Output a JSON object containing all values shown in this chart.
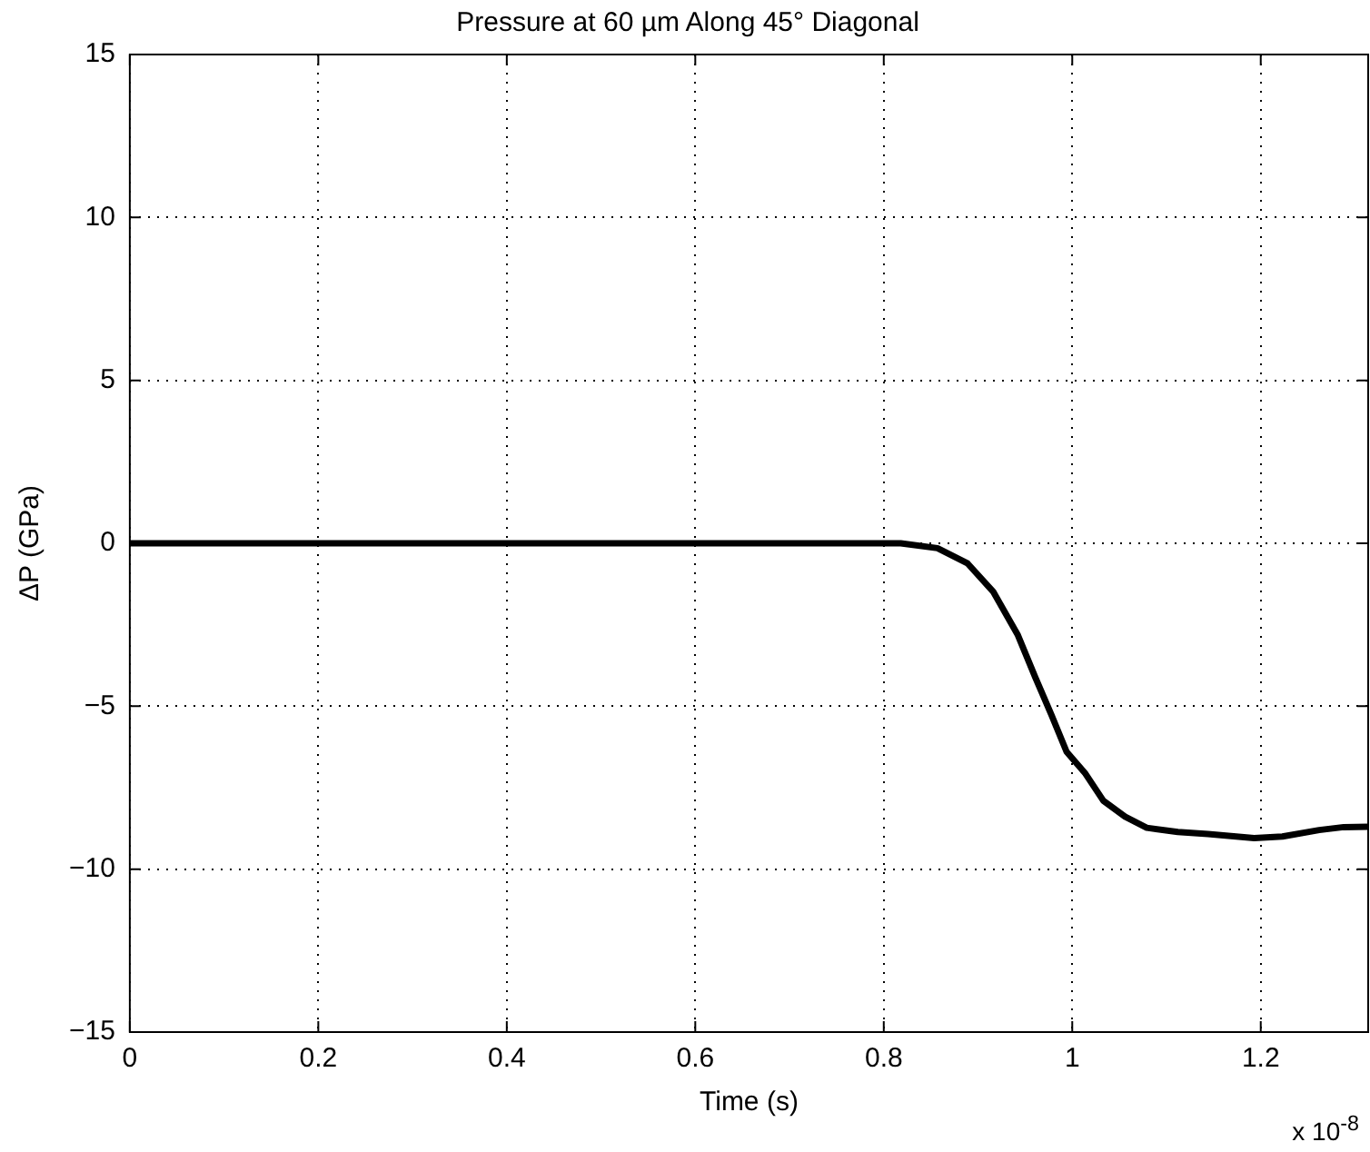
{
  "chart_data": {
    "type": "line",
    "title": "Pressure at 60 µm Along 45° Diagonal",
    "xlabel": "Time (s)",
    "ylabel": "ΔP (GPa)",
    "annotations": [
      "x 10$^{-8}$"
    ],
    "x": [
      0,
      0.2,
      0.4,
      0.6,
      0.75,
      0.818,
      0.857,
      0.889,
      0.916,
      0.942,
      0.961,
      0.978,
      0.994,
      1.014,
      1.033,
      1.056,
      1.079,
      1.112,
      1.144,
      1.193,
      1.223,
      1.262,
      1.288,
      1.314
    ],
    "series": [
      {
        "color": "#000000",
        "values": [
          0,
          0,
          0,
          0,
          0,
          0,
          -0.15,
          -0.62,
          -1.48,
          -2.8,
          -4.13,
          -5.27,
          -6.4,
          -7.07,
          -7.9,
          -8.39,
          -8.73,
          -8.86,
          -8.92,
          -9.05,
          -9.0,
          -8.8,
          -8.71,
          -8.7
        ]
      }
    ],
    "xlim": [
      0,
      1.314
    ],
    "xticks": [
      0,
      0.2,
      0.4,
      0.6,
      0.8,
      1,
      1.2
    ],
    "ylim": [
      -15,
      15
    ],
    "yticks": [
      -15,
      -10,
      -5,
      0,
      5,
      10,
      15
    ],
    "grid": true,
    "legend": false,
    "marker": "none",
    "line_style": "solid"
  }
}
